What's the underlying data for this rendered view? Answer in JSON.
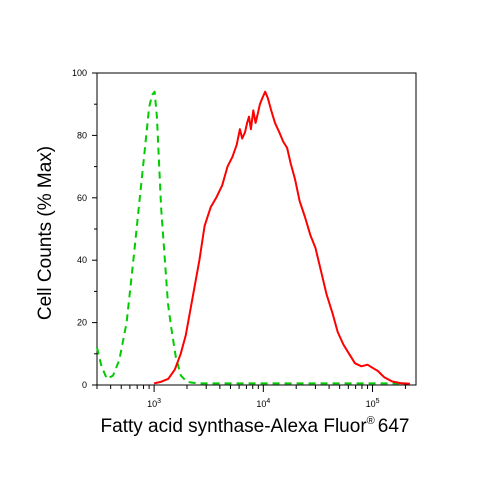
{
  "chart_data": {
    "type": "line",
    "xlabel": "Fatty acid synthase-Alexa Fluor",
    "xlabel_superscript": "®",
    "xlabel_suffix": "647",
    "ylabel": "Cell Counts (% Max)",
    "x_scale": "log",
    "xlim": [
      300,
      250000
    ],
    "ylim": [
      0,
      100
    ],
    "y_ticks": [
      0,
      20,
      40,
      60,
      80,
      100
    ],
    "x_tick_labels": [
      {
        "value": 1000,
        "base": "10",
        "exp": "3"
      },
      {
        "value": 10000,
        "base": "10",
        "exp": "4"
      },
      {
        "value": 100000,
        "base": "10",
        "exp": "5"
      }
    ],
    "grid": false,
    "series": [
      {
        "color": "#00cc00",
        "dash": true,
        "points": [
          [
            300,
            12
          ],
          [
            330,
            6
          ],
          [
            370,
            2
          ],
          [
            420,
            3
          ],
          [
            480,
            8
          ],
          [
            560,
            20
          ],
          [
            650,
            41
          ],
          [
            740,
            60
          ],
          [
            830,
            77
          ],
          [
            900,
            89
          ],
          [
            960,
            93
          ],
          [
            1010,
            94
          ],
          [
            1060,
            86
          ],
          [
            1160,
            57
          ],
          [
            1260,
            39
          ],
          [
            1340,
            26
          ],
          [
            1440,
            18
          ],
          [
            1580,
            9
          ],
          [
            1760,
            3
          ],
          [
            2000,
            1
          ],
          [
            2500,
            0.5
          ],
          [
            5000,
            0.5
          ],
          [
            20000,
            0.5
          ],
          [
            100000,
            0.5
          ],
          [
            200000,
            0.5
          ]
        ]
      },
      {
        "color": "#ff0000",
        "dash": false,
        "points": [
          [
            1000,
            0.5
          ],
          [
            1150,
            1
          ],
          [
            1350,
            2
          ],
          [
            1550,
            5
          ],
          [
            1750,
            10
          ],
          [
            1950,
            16
          ],
          [
            2250,
            28
          ],
          [
            2600,
            40
          ],
          [
            2900,
            51
          ],
          [
            3300,
            57
          ],
          [
            3700,
            60
          ],
          [
            4200,
            64
          ],
          [
            4700,
            70
          ],
          [
            5200,
            73
          ],
          [
            5700,
            77
          ],
          [
            6100,
            82
          ],
          [
            6400,
            79
          ],
          [
            6800,
            81
          ],
          [
            7100,
            84
          ],
          [
            7400,
            86
          ],
          [
            7700,
            82
          ],
          [
            8100,
            88
          ],
          [
            8500,
            84
          ],
          [
            8900,
            87
          ],
          [
            9300,
            90
          ],
          [
            9800,
            92
          ],
          [
            10400,
            94
          ],
          [
            11000,
            92
          ],
          [
            11800,
            88
          ],
          [
            12800,
            84
          ],
          [
            14000,
            81
          ],
          [
            15200,
            78
          ],
          [
            16500,
            76
          ],
          [
            17800,
            71
          ],
          [
            19500,
            66
          ],
          [
            21500,
            59
          ],
          [
            24000,
            54
          ],
          [
            27000,
            48
          ],
          [
            30000,
            44
          ],
          [
            34000,
            36
          ],
          [
            38000,
            29
          ],
          [
            43000,
            23
          ],
          [
            48000,
            17
          ],
          [
            54000,
            13
          ],
          [
            61000,
            10
          ],
          [
            69000,
            7
          ],
          [
            79000,
            6
          ],
          [
            90000,
            6.5
          ],
          [
            100000,
            5.5
          ],
          [
            112000,
            4.5
          ],
          [
            128000,
            2.5
          ],
          [
            150000,
            1.2
          ],
          [
            180000,
            0.6
          ],
          [
            220000,
            0.4
          ]
        ]
      }
    ]
  }
}
